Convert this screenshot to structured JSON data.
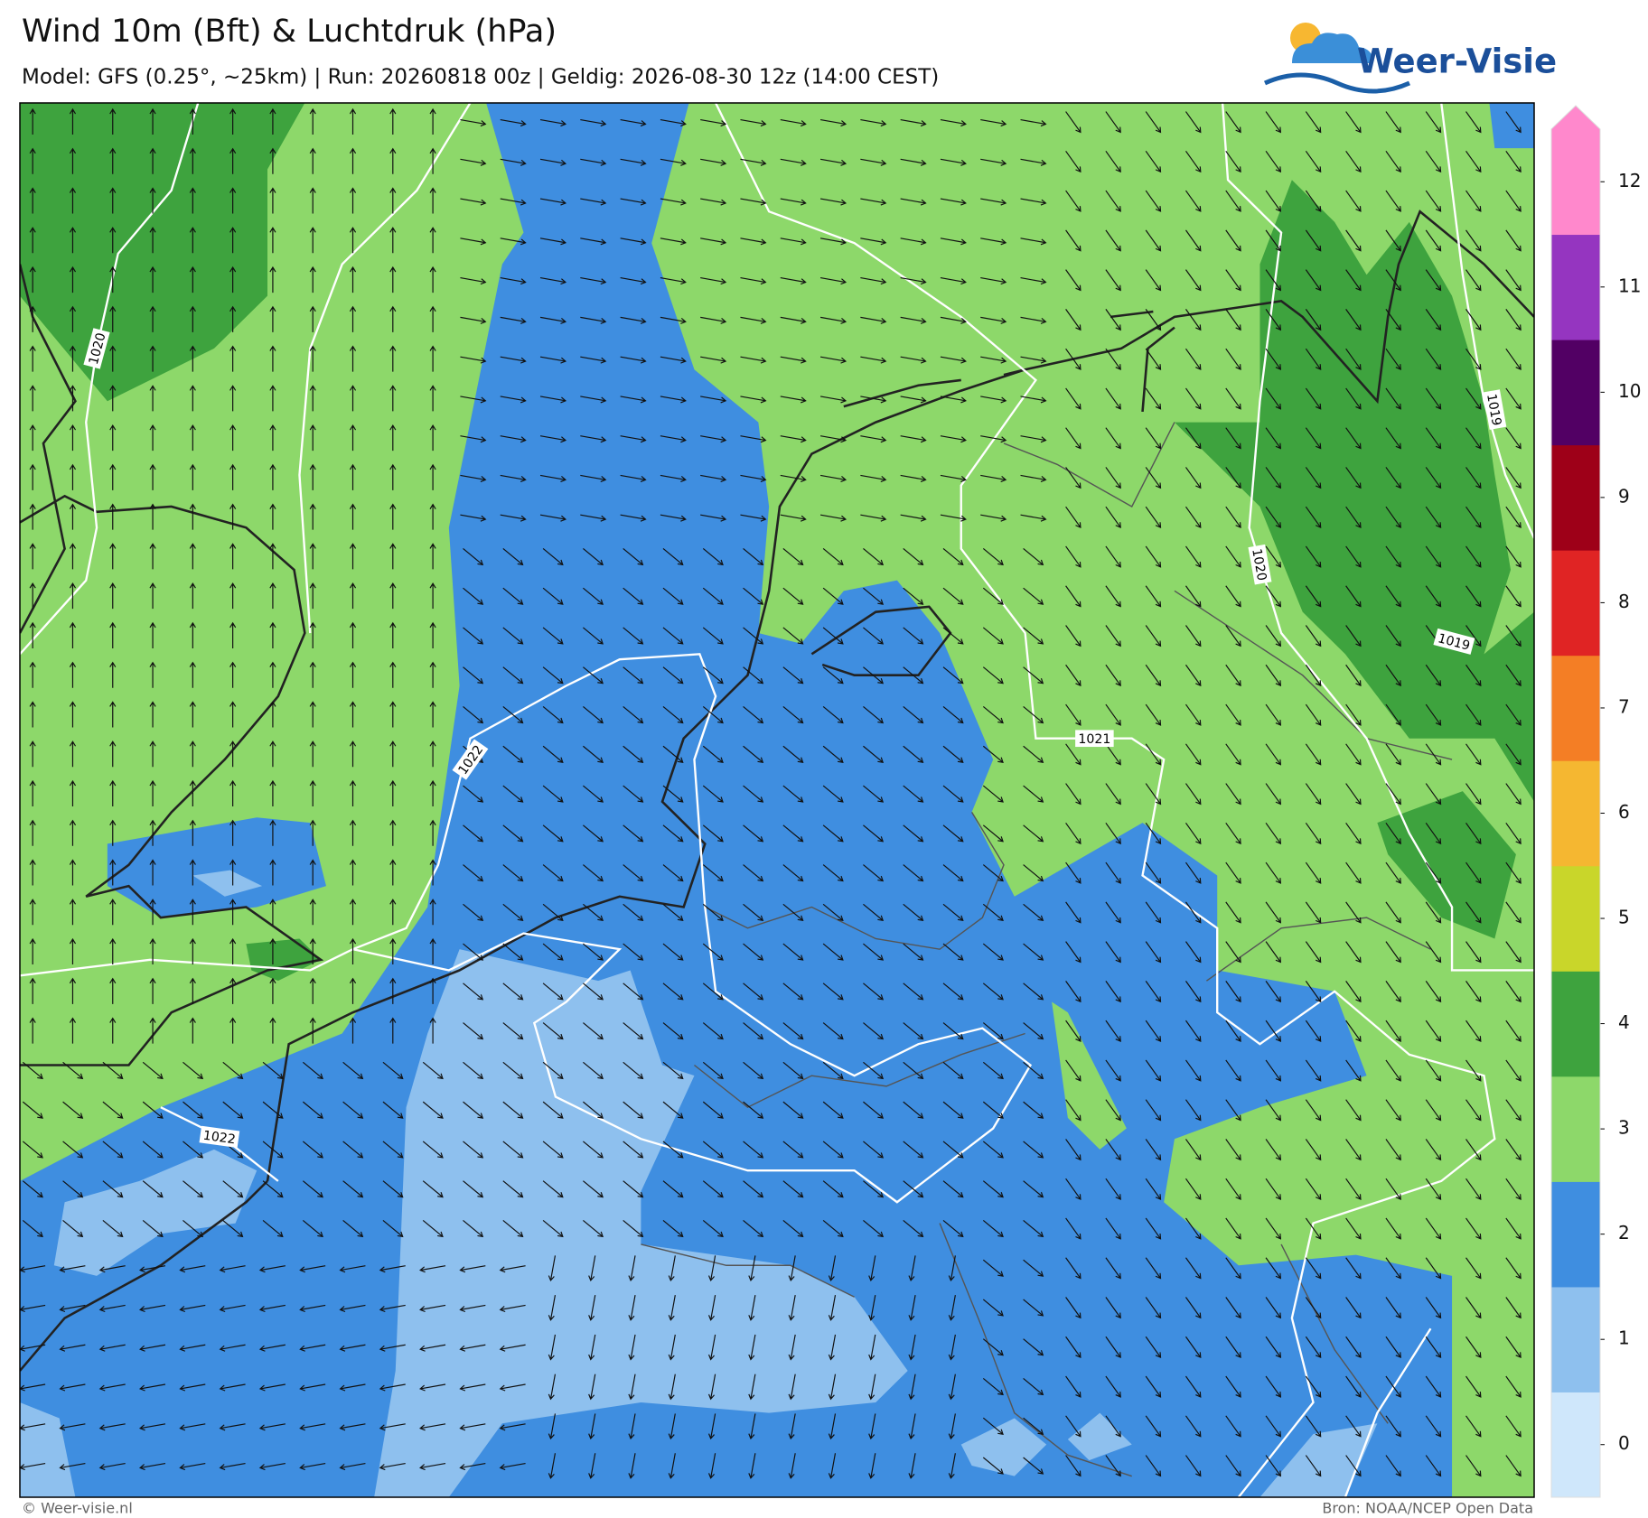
{
  "header": {
    "title": "Wind 10m (Bft) & Luchtdruk (hPa)",
    "subtitle": "Model: GFS (0.25°, ~25km)  |  Run: 20260818 00z  |  Geldig: 2026-08-30 12z (14:00 CEST)",
    "logo": "Weer-Visie"
  },
  "map": {
    "contour_labels": [
      "1020",
      "1022",
      "1022",
      "1021",
      "1020",
      "1019",
      "1019"
    ]
  },
  "legend": {
    "items": [
      {
        "value": 0,
        "color": "#cfe7fb"
      },
      {
        "value": 1,
        "color": "#8ec0ee"
      },
      {
        "value": 2,
        "color": "#3f8ee0"
      },
      {
        "value": 3,
        "color": "#8dd86a"
      },
      {
        "value": 4,
        "color": "#3ea33e"
      },
      {
        "value": 5,
        "color": "#c9d62a"
      },
      {
        "value": 6,
        "color": "#f5b731"
      },
      {
        "value": 7,
        "color": "#f47e25"
      },
      {
        "value": 8,
        "color": "#e02424"
      },
      {
        "value": 9,
        "color": "#9e0018"
      },
      {
        "value": 10,
        "color": "#520064"
      },
      {
        "value": 11,
        "color": "#9535c0"
      },
      {
        "value": 12,
        "color": "#ff88cc"
      }
    ]
  },
  "footer": {
    "left": "© Weer-visie.nl",
    "right": "Bron: NOAA/NCEP Open Data"
  }
}
